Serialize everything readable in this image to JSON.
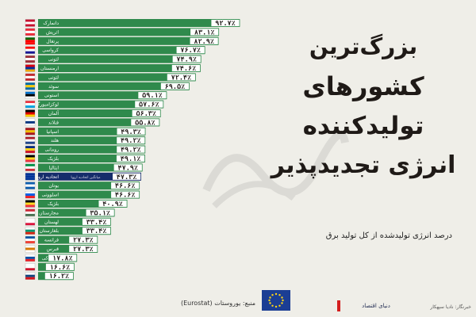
{
  "title_lines": [
    "بزرگ‌ترین",
    "کشورهای",
    "تولیدکننده",
    "انرژی تجدیدپذیر"
  ],
  "subtitle": "درصد انرژی تولیدشده از کل تولید برق",
  "source": "منبع: یوروستات (Eurostat)",
  "brand": "دنیای اقتصاد",
  "credit": "خبرنگار: نادیا سپهکار",
  "colors": {
    "background": "#efeee8",
    "bar": "#2f8a4c",
    "bar_highlight": "#152c6b",
    "text": "#1f1a17"
  },
  "chart_data": {
    "type": "bar",
    "orientation": "horizontal",
    "title": "بزرگ‌ترین کشورهای تولیدکننده انرژی تجدیدپذیر",
    "ylabel": "درصد انرژی تولیدشده از کل تولید برق",
    "xlim": [
      0,
      100
    ],
    "categories": [
      "دانمارک",
      "اتریش",
      "پرتغال",
      "کرواسی",
      "لتونی",
      "ارمنستان",
      "لتونی",
      "سوئد",
      "استونی",
      "لوکزامبورگ",
      "آلمان",
      "فنلاند",
      "اسپانیا",
      "هلند",
      "رومانی",
      "بلژیک",
      "ایتالیا",
      "اتحادیه اروپا",
      "یونان",
      "اسلوونی",
      "بلژیک",
      "مجارستان",
      "لهستان",
      "بلغارستان",
      "فرانسه",
      "قبرس",
      "اسلواکی",
      "مالت",
      "چک"
    ],
    "value_labels": [
      "۹۲.۷٪",
      "۸۳.۱٪",
      "۸۲.۹٪",
      "۷۶.۷٪",
      "۷۴.۹٪",
      "۷۴.۶٪",
      "۷۲.۴٪",
      "۶۹.۵٪",
      "۵۹.۱٪",
      "۵۷.۶٪",
      "۵۶.۳٪",
      "۵۵.۸٪",
      "۴۹.۳٪",
      "۴۹.۲٪",
      "۴۹.۲٪",
      "۴۹.۱٪",
      "۴۷.۹٪",
      "۴۷.۳٪",
      "۴۶.۶٪",
      "۴۶.۶٪",
      "۴۰.۹٪",
      "۳۵.۱٪",
      "۳۳.۴٪",
      "۳۳.۴٪",
      "۲۷.۳٪",
      "۲۷.۳٪",
      "۱۷.۸٪",
      "۱۶.۶٪",
      "۱۶.۲٪"
    ],
    "values": [
      92.7,
      83.1,
      82.9,
      76.7,
      74.9,
      74.6,
      72.4,
      69.5,
      59.1,
      57.6,
      56.3,
      55.8,
      49.3,
      49.2,
      49.2,
      49.1,
      47.9,
      47.3,
      46.6,
      46.6,
      40.9,
      35.1,
      33.4,
      33.4,
      27.3,
      27.3,
      17.8,
      16.6,
      16.2
    ],
    "highlight_index": 17,
    "highlight_sub": "میانگین اتحادیه اروپا",
    "flag_colors": [
      [
        "#c8102e",
        "#ffffff",
        "#c8102e"
      ],
      [
        "#ed2939",
        "#ffffff",
        "#ed2939"
      ],
      [
        "#006600",
        "#ff0000",
        "#ff0000"
      ],
      [
        "#ff0000",
        "#ffffff",
        "#171796"
      ],
      [
        "#9e3039",
        "#ffffff",
        "#9e3039"
      ],
      [
        "#d90012",
        "#0033a0",
        "#f2a800"
      ],
      [
        "#c1272d",
        "#ffffff",
        "#c1272d"
      ],
      [
        "#006aa7",
        "#fecc00",
        "#006aa7"
      ],
      [
        "#0072ce",
        "#000000",
        "#ffffff"
      ],
      [
        "#ef3340",
        "#ffffff",
        "#00a3e0"
      ],
      [
        "#000000",
        "#dd0000",
        "#ffce00"
      ],
      [
        "#ffffff",
        "#003580",
        "#ffffff"
      ],
      [
        "#aa151b",
        "#f1bf00",
        "#aa151b"
      ],
      [
        "#ae1c28",
        "#ffffff",
        "#21468b"
      ],
      [
        "#002b7f",
        "#fcd116",
        "#ce1126"
      ],
      [
        "#000000",
        "#fdda24",
        "#ef3340"
      ],
      [
        "#009246",
        "#ffffff",
        "#ce2b37"
      ],
      [
        "#003399",
        "#003399",
        "#003399"
      ],
      [
        "#0d5eaf",
        "#ffffff",
        "#0d5eaf"
      ],
      [
        "#ffffff",
        "#005ce5",
        "#ed1c24"
      ],
      [
        "#000000",
        "#fdda24",
        "#ef3340"
      ],
      [
        "#ce2939",
        "#ffffff",
        "#477050"
      ],
      [
        "#ffffff",
        "#ffffff",
        "#dc143c"
      ],
      [
        "#ffffff",
        "#00966e",
        "#d62612"
      ],
      [
        "#0055a4",
        "#ffffff",
        "#ef4135"
      ],
      [
        "#ffffff",
        "#d57800",
        "#ffffff"
      ],
      [
        "#ffffff",
        "#0b4ea2",
        "#ee1c25"
      ],
      [
        "#ffffff",
        "#ffffff",
        "#cf142b"
      ],
      [
        "#ffffff",
        "#11457e",
        "#d7141a"
      ]
    ]
  }
}
